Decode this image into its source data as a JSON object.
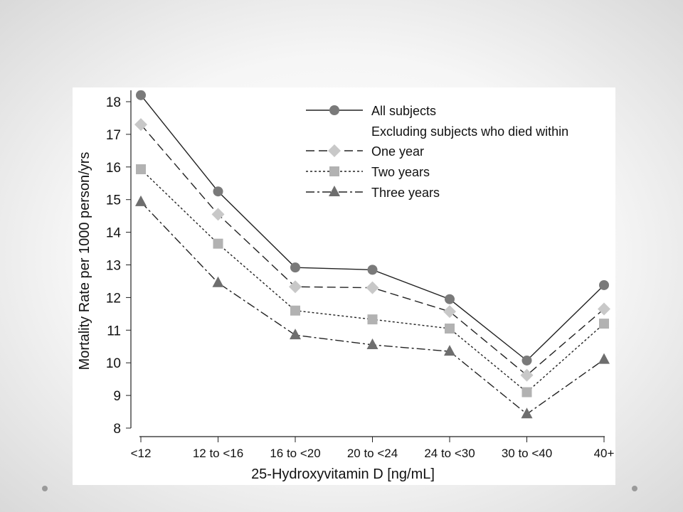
{
  "slide": {
    "nav_left": "previous-slide",
    "nav_right": "next-slide"
  },
  "chart_data": {
    "type": "line",
    "title": "",
    "xlabel": "25-Hydroxyvitamin D [ng/mL]",
    "ylabel": "Mortality Rate per 1000 person/yrs",
    "ylim": [
      8,
      18
    ],
    "yticks": [
      8,
      9,
      10,
      11,
      12,
      13,
      14,
      15,
      16,
      17,
      18
    ],
    "grid": false,
    "legend_position": "top-right",
    "categories": [
      "<12",
      "12 to <16",
      "16 to <20",
      "20 to <24",
      "24 to <30",
      "30 to <40",
      "40+"
    ],
    "legend_subtitle": "Excluding subjects who died within",
    "series": [
      {
        "name": "All subjects",
        "marker": "circle",
        "dash": "solid",
        "color": "#7a7a7a",
        "values": [
          18.2,
          15.25,
          12.92,
          12.85,
          11.95,
          10.07,
          12.38
        ]
      },
      {
        "name": "One year",
        "marker": "diamond",
        "dash": "dashed",
        "color": "#c8c8c8",
        "values": [
          17.3,
          14.55,
          12.33,
          12.3,
          11.57,
          9.62,
          11.65
        ]
      },
      {
        "name": "Two years",
        "marker": "square",
        "dash": "dotted",
        "color": "#b2b2b2",
        "values": [
          15.93,
          13.65,
          11.6,
          11.33,
          11.05,
          9.1,
          11.2
        ]
      },
      {
        "name": "Three years",
        "marker": "triangle",
        "dash": "dashdot",
        "color": "#6e6e6e",
        "values": [
          14.93,
          12.45,
          10.85,
          10.55,
          10.35,
          8.43,
          10.1
        ]
      }
    ]
  }
}
